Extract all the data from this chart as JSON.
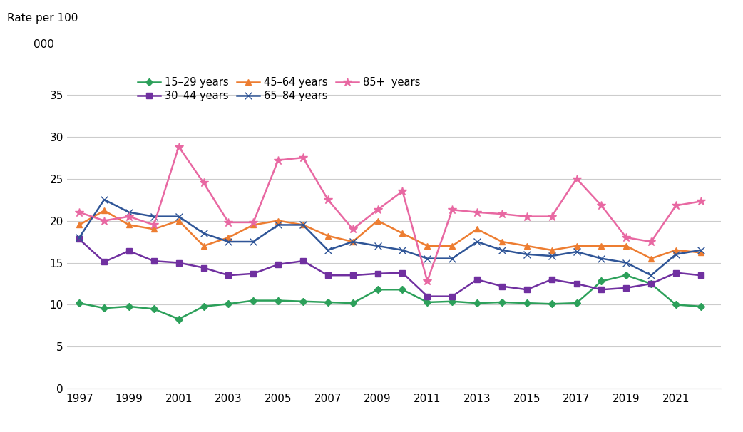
{
  "years": [
    1997,
    1998,
    1999,
    2000,
    2001,
    2002,
    2003,
    2004,
    2005,
    2006,
    2007,
    2008,
    2009,
    2010,
    2011,
    2012,
    2013,
    2014,
    2015,
    2016,
    2017,
    2018,
    2019,
    2020,
    2021,
    2022
  ],
  "series": {
    "15–29 years": {
      "values": [
        10.2,
        9.6,
        9.8,
        9.5,
        8.3,
        9.8,
        10.1,
        10.5,
        10.5,
        10.4,
        10.3,
        10.2,
        11.8,
        11.8,
        10.3,
        10.4,
        10.2,
        10.3,
        10.2,
        10.1,
        10.2,
        12.8,
        13.5,
        12.5,
        10.0,
        9.8
      ],
      "color": "#2ca05a",
      "marker": "D",
      "markersize": 5
    },
    "30–44 years": {
      "values": [
        17.8,
        15.1,
        16.4,
        15.2,
        15.0,
        14.4,
        13.5,
        13.7,
        14.8,
        15.2,
        13.5,
        13.5,
        13.7,
        13.8,
        11.0,
        11.0,
        13.0,
        12.2,
        11.8,
        13.0,
        12.5,
        11.8,
        12.0,
        12.5,
        13.8,
        13.5
      ],
      "color": "#7030a0",
      "marker": "s",
      "markersize": 6
    },
    "45–64 years": {
      "values": [
        19.5,
        21.2,
        19.5,
        19.0,
        20.0,
        17.0,
        18.0,
        19.5,
        20.0,
        19.5,
        18.2,
        17.5,
        20.0,
        18.5,
        17.0,
        17.0,
        19.0,
        17.5,
        17.0,
        16.5,
        17.0,
        17.0,
        17.0,
        15.5,
        16.5,
        16.2
      ],
      "color": "#ed7d31",
      "marker": "^",
      "markersize": 6
    },
    "65–84 years": {
      "values": [
        18.0,
        22.5,
        21.0,
        20.5,
        20.5,
        18.5,
        17.5,
        17.5,
        19.5,
        19.5,
        16.5,
        17.5,
        17.0,
        16.5,
        15.5,
        15.5,
        17.5,
        16.5,
        16.0,
        15.8,
        16.3,
        15.5,
        15.0,
        13.5,
        16.0,
        16.5
      ],
      "color": "#2f5597",
      "marker": "x",
      "markersize": 7
    },
    "85+  years": {
      "values": [
        21.0,
        20.0,
        20.5,
        19.5,
        28.8,
        24.5,
        19.8,
        19.8,
        27.2,
        27.5,
        22.5,
        19.0,
        21.3,
        23.5,
        12.8,
        21.3,
        21.0,
        20.8,
        20.5,
        20.5,
        25.0,
        21.8,
        18.0,
        17.5,
        21.8,
        22.3
      ],
      "color": "#e868a2",
      "marker": "*",
      "markersize": 9
    }
  },
  "ylim": [
    0,
    37
  ],
  "yticks": [
    0,
    5,
    10,
    15,
    20,
    25,
    30,
    35
  ],
  "xlim": [
    1996.5,
    2022.8
  ],
  "xticks": [
    1997,
    1999,
    2001,
    2003,
    2005,
    2007,
    2009,
    2011,
    2013,
    2015,
    2017,
    2019,
    2021
  ],
  "grid_color": "#cccccc",
  "legend_order": [
    "15–29 years",
    "30–44 years",
    "45–64 years",
    "65–84 years",
    "85+  years"
  ],
  "ylabel_line1": "Rate per 100",
  "ylabel_line2": "000"
}
